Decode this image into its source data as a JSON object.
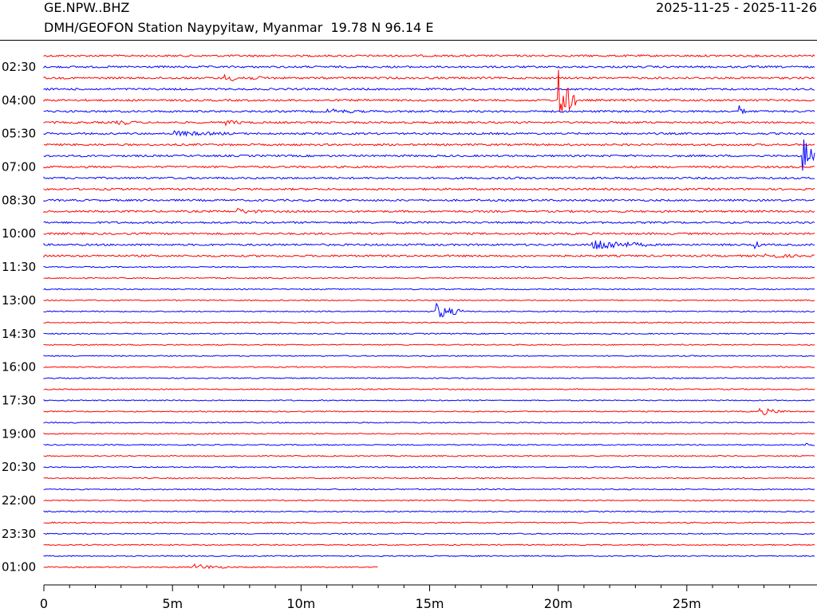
{
  "header": {
    "station_code": "GE.NPW..BHZ",
    "date_range": "2025-11-25 - 2025-11-26",
    "station_description": "DMH/GEOFON Station Naypyitaw, Myanmar  19.78 N 96.14 E"
  },
  "colors": {
    "trace_a": "#ff0000",
    "trace_b": "#0000ff",
    "axis": "#000000"
  },
  "chart_data": {
    "type": "line",
    "title": "",
    "xlabel": "",
    "ylabel": "",
    "xlim": [
      0,
      30
    ],
    "x_ticks": [
      {
        "value": 0,
        "label": "0"
      },
      {
        "value": 5,
        "label": "5m"
      },
      {
        "value": 10,
        "label": "10m"
      },
      {
        "value": 15,
        "label": "15m"
      },
      {
        "value": 20,
        "label": "20m"
      },
      {
        "value": 25,
        "label": "25m"
      }
    ],
    "x_minor_step": 1,
    "row_minutes": 30,
    "row_count": 47,
    "row_colors": [
      "red",
      "blue"
    ],
    "y_tick_labels": [
      {
        "row": 2,
        "label": "02:30"
      },
      {
        "row": 5,
        "label": "04:00"
      },
      {
        "row": 8,
        "label": "05:30"
      },
      {
        "row": 11,
        "label": "07:00"
      },
      {
        "row": 14,
        "label": "08:30"
      },
      {
        "row": 17,
        "label": "10:00"
      },
      {
        "row": 20,
        "label": "11:30"
      },
      {
        "row": 23,
        "label": "13:00"
      },
      {
        "row": 26,
        "label": "14:30"
      },
      {
        "row": 29,
        "label": "16:00"
      },
      {
        "row": 32,
        "label": "17:30"
      },
      {
        "row": 35,
        "label": "19:00"
      },
      {
        "row": 38,
        "label": "20:30"
      },
      {
        "row": 41,
        "label": "22:00"
      },
      {
        "row": 44,
        "label": "23:30"
      },
      {
        "row": 47,
        "label": "01:00"
      }
    ],
    "last_row_end_minute": 13,
    "events": [
      {
        "row": 3,
        "start": 7.0,
        "end": 9.0,
        "amplitude": 0.25
      },
      {
        "row": 6,
        "start": 11.0,
        "end": 12.5,
        "amplitude": 0.2
      },
      {
        "row": 7,
        "start": 2.8,
        "end": 3.6,
        "amplitude": 0.3
      },
      {
        "row": 7,
        "start": 7.0,
        "end": 8.0,
        "amplitude": 0.2
      },
      {
        "row": 8,
        "start": 5.0,
        "end": 7.5,
        "amplitude": 0.2
      },
      {
        "row": 5,
        "start": 20.0,
        "end": 20.7,
        "amplitude": 3.5
      },
      {
        "row": 6,
        "start": 27.0,
        "end": 27.3,
        "amplitude": 0.6
      },
      {
        "row": 10,
        "start": 29.5,
        "end": 30.0,
        "amplitude": 2.6
      },
      {
        "row": 15,
        "start": 7.5,
        "end": 8.5,
        "amplitude": 0.25
      },
      {
        "row": 19,
        "start": 28.0,
        "end": 29.5,
        "amplitude": 0.2
      },
      {
        "row": 18,
        "start": 21.3,
        "end": 23.5,
        "amplitude": 0.6
      },
      {
        "row": 18,
        "start": 27.6,
        "end": 28.0,
        "amplitude": 0.35
      },
      {
        "row": 24,
        "start": 15.2,
        "end": 16.5,
        "amplitude": 0.8
      },
      {
        "row": 33,
        "start": 27.8,
        "end": 29.0,
        "amplitude": 0.35
      },
      {
        "row": 36,
        "start": 29.6,
        "end": 30.0,
        "amplitude": 0.3
      },
      {
        "row": 47,
        "start": 5.8,
        "end": 7.2,
        "amplitude": 0.3
      }
    ]
  }
}
